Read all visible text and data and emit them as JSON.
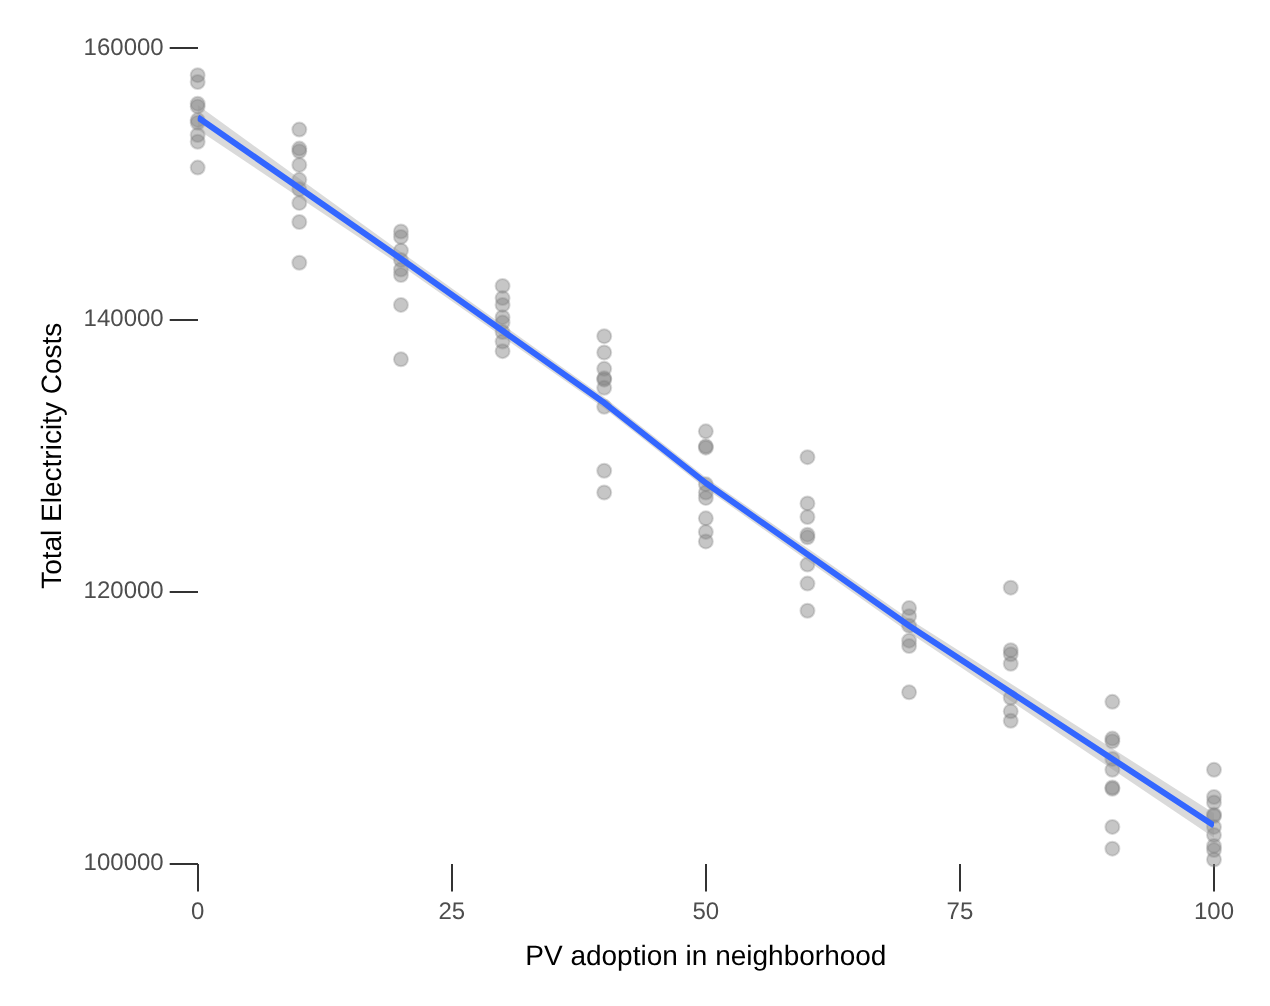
{
  "chart_data": {
    "type": "scatter",
    "xlabel": "PV adoption in neighborhood",
    "ylabel": "Total Electricity Costs",
    "xlim": [
      0,
      100
    ],
    "ylim": [
      100000,
      160000
    ],
    "xticks": [
      0,
      25,
      50,
      75,
      100
    ],
    "yticks": [
      100000,
      120000,
      140000,
      160000
    ],
    "grid": false,
    "legend": false,
    "series": [
      {
        "marker": "circle",
        "color": "#808080",
        "x": [
          0,
          0,
          0,
          0,
          0,
          0,
          0,
          0,
          0,
          10,
          10,
          10,
          10,
          10,
          10,
          10,
          10,
          10,
          20,
          20,
          20,
          20,
          20,
          20,
          20,
          20,
          30,
          30,
          30,
          30,
          30,
          30,
          30,
          30,
          40,
          40,
          40,
          40,
          40,
          40,
          40,
          40,
          40,
          50,
          50,
          50,
          50,
          50,
          50,
          50,
          50,
          50,
          60,
          60,
          60,
          60,
          60,
          60,
          60,
          60,
          70,
          70,
          70,
          70,
          70,
          70,
          80,
          80,
          80,
          80,
          80,
          80,
          80,
          90,
          90,
          90,
          90,
          90,
          90,
          90,
          90,
          90,
          100,
          100,
          100,
          100,
          100,
          100,
          100,
          100,
          100,
          100
        ],
        "values": [
          158000,
          157500,
          155900,
          155700,
          154700,
          154500,
          153600,
          153100,
          151200,
          154000,
          152600,
          152400,
          151400,
          150300,
          149600,
          148600,
          147200,
          144200,
          146500,
          146100,
          145100,
          144400,
          143700,
          143300,
          141100,
          137100,
          142500,
          141600,
          141100,
          140200,
          139800,
          139100,
          138400,
          137700,
          138800,
          137600,
          136400,
          135700,
          135600,
          135000,
          133600,
          128900,
          127300,
          131800,
          130700,
          130600,
          127900,
          127300,
          126900,
          125400,
          124400,
          123700,
          129900,
          126500,
          125500,
          124200,
          124000,
          122000,
          120600,
          118600,
          118800,
          118200,
          117500,
          116400,
          116000,
          112600,
          120300,
          115700,
          115400,
          114700,
          112200,
          111200,
          110500,
          111900,
          109200,
          109000,
          107700,
          106900,
          105600,
          105500,
          102700,
          101100,
          106900,
          104900,
          104500,
          103600,
          103500,
          102700,
          102100,
          101300,
          101000,
          100300
        ]
      },
      {
        "type": "line",
        "marker": "none",
        "color": "#3366ff",
        "x": [
          0,
          20,
          40,
          50,
          70,
          100
        ],
        "values": [
          154900,
          144500,
          133900,
          128000,
          117500,
          102800
        ],
        "lower": [
          154000,
          144000,
          133500,
          127600,
          117000,
          101900
        ],
        "upper": [
          155800,
          145000,
          134300,
          128400,
          118000,
          103700
        ]
      }
    ]
  }
}
